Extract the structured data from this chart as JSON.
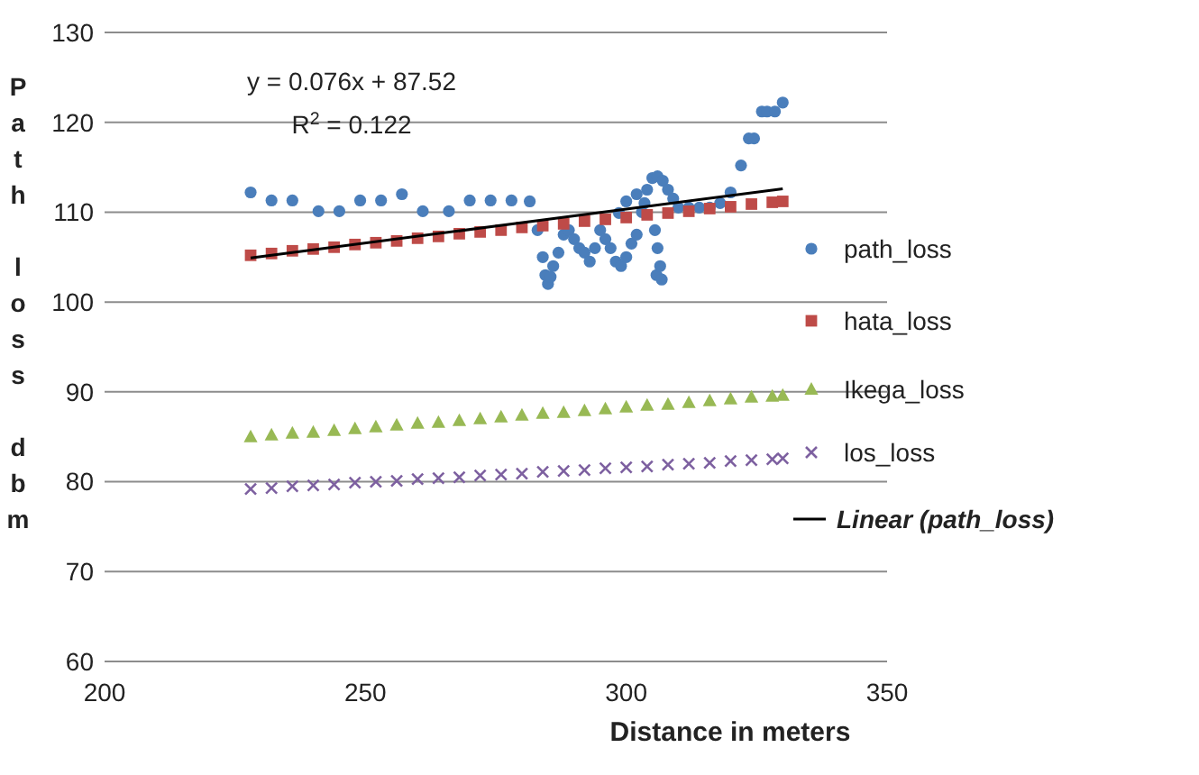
{
  "chart_data": {
    "type": "scatter",
    "xlabel": "Distance in meters",
    "ylabel": "Path loss dbm",
    "xlim": [
      200,
      350
    ],
    "xticks": [
      200,
      250,
      300,
      350
    ],
    "ylim": [
      60,
      130
    ],
    "yticks": [
      60,
      70,
      80,
      90,
      100,
      110,
      120,
      130
    ],
    "grid": "y",
    "legend": "right",
    "annotations": [
      "y = 0.076x + 87.52",
      "R$^{2}$ = 0.122"
    ],
    "x": [
      228,
      232,
      236,
      240,
      244,
      248,
      252,
      256,
      260,
      264,
      268,
      272,
      276,
      280,
      284,
      288,
      292,
      296,
      300,
      304,
      308,
      312,
      316,
      320,
      324,
      328,
      330
    ],
    "series": [
      {
        "name": "path_loss",
        "color": "#4a7ebb",
        "marker": "circle",
        "x": [
          228,
          232,
          236,
          241,
          245,
          249,
          253,
          257,
          261,
          266,
          270,
          274,
          278,
          281.5,
          283,
          284,
          284.5,
          285,
          285.5,
          286,
          287,
          288,
          289,
          290,
          291,
          292,
          293,
          294,
          295,
          296,
          297,
          298,
          298.6,
          299,
          300,
          300,
          301,
          302,
          302,
          303,
          303.5,
          304,
          305,
          305.5,
          305.8,
          306,
          306,
          306.5,
          306.8,
          307,
          308,
          309,
          310,
          312,
          314,
          316,
          318,
          320,
          322,
          323.5,
          324.5,
          326,
          327,
          328.5,
          330
        ],
        "values": [
          112.2,
          111.3,
          111.3,
          110.1,
          110.1,
          111.3,
          111.3,
          112.0,
          110.1,
          110.1,
          111.3,
          111.3,
          111.3,
          111.2,
          108,
          105,
          103,
          102,
          102.8,
          104,
          105.5,
          107.5,
          108,
          107,
          106,
          105.5,
          104.5,
          106,
          108,
          107,
          106,
          104.5,
          109.9,
          104,
          105,
          111.2,
          106.5,
          107.5,
          112,
          110,
          111,
          112.5,
          113.8,
          108,
          103,
          114,
          106,
          104,
          102.5,
          113.5,
          112.5,
          111.5,
          110.5,
          110.5,
          110.5,
          110.5,
          111,
          112.2,
          115.2,
          118.2,
          118.2,
          121.2,
          121.2,
          121.2,
          122.2
        ]
      },
      {
        "name": "hata_loss",
        "color": "#be4b48",
        "marker": "square",
        "values": [
          105.2,
          105.4,
          105.7,
          105.9,
          106.1,
          106.4,
          106.6,
          106.8,
          107.1,
          107.3,
          107.6,
          107.8,
          108.0,
          108.3,
          108.5,
          108.7,
          109.0,
          109.2,
          109.4,
          109.7,
          109.9,
          110.1,
          110.4,
          110.6,
          110.9,
          111.1,
          111.2
        ]
      },
      {
        "name": "Ikega_loss",
        "color": "#98b954",
        "marker": "triangle",
        "values": [
          85.0,
          85.2,
          85.4,
          85.5,
          85.7,
          85.9,
          86.1,
          86.3,
          86.5,
          86.6,
          86.8,
          87.0,
          87.2,
          87.4,
          87.6,
          87.7,
          87.9,
          88.1,
          88.3,
          88.5,
          88.6,
          88.8,
          89.0,
          89.2,
          89.4,
          89.5,
          89.6
        ]
      },
      {
        "name": "los_loss",
        "color": "#7d60a0",
        "marker": "cross",
        "values": [
          79.2,
          79.3,
          79.5,
          79.6,
          79.7,
          79.9,
          80.0,
          80.1,
          80.3,
          80.4,
          80.5,
          80.7,
          80.8,
          80.9,
          81.1,
          81.2,
          81.3,
          81.5,
          81.6,
          81.7,
          81.9,
          82.0,
          82.1,
          82.3,
          82.4,
          82.5,
          82.6
        ]
      },
      {
        "name": "Linear (path_loss)",
        "type": "line",
        "color": "#000000",
        "marker": "none",
        "line_style": "solid",
        "x": [
          228,
          330
        ],
        "values": [
          104.9,
          112.6
        ]
      }
    ]
  }
}
